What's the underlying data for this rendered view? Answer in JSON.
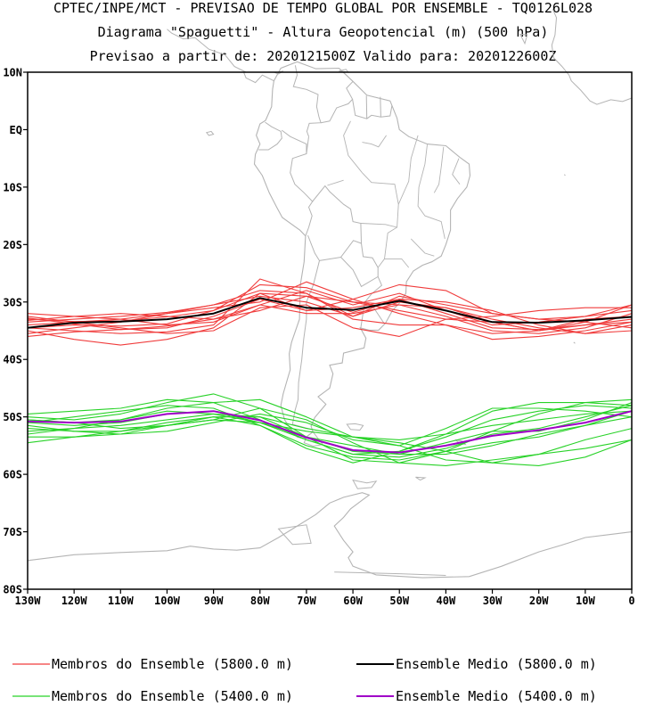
{
  "header": {
    "line1": "CPTEC/INPE/MCT - PREVISAO DE TEMPO GLOBAL POR ENSEMBLE - TQ0126L028",
    "line2": "Diagrama \"Spaguetti\" - Altura Geopotencial (m) (500 hPa)",
    "line3": "Previsao a partir de: 2020121500Z  Valido para: 2020122600Z"
  },
  "chart_data": {
    "type": "line",
    "x_label_units": "longitude (negative = West)",
    "y_label_units": "latitude (negative = South)",
    "xlim": [
      -130,
      0
    ],
    "ylim": [
      -80,
      10
    ],
    "x_ticks": [
      {
        "value": -130,
        "label": "130W"
      },
      {
        "value": -120,
        "label": "120W"
      },
      {
        "value": -110,
        "label": "110W"
      },
      {
        "value": -100,
        "label": "100W"
      },
      {
        "value": -90,
        "label": "90W"
      },
      {
        "value": -80,
        "label": "80W"
      },
      {
        "value": -70,
        "label": "70W"
      },
      {
        "value": -60,
        "label": "60W"
      },
      {
        "value": -50,
        "label": "50W"
      },
      {
        "value": -40,
        "label": "40W"
      },
      {
        "value": -30,
        "label": "30W"
      },
      {
        "value": -20,
        "label": "20W"
      },
      {
        "value": -10,
        "label": "10W"
      },
      {
        "value": 0,
        "label": "0"
      }
    ],
    "y_ticks": [
      {
        "value": 10,
        "label": "10N"
      },
      {
        "value": 0,
        "label": "EQ"
      },
      {
        "value": -10,
        "label": "10S"
      },
      {
        "value": -20,
        "label": "20S"
      },
      {
        "value": -30,
        "label": "30S"
      },
      {
        "value": -40,
        "label": "40S"
      },
      {
        "value": -50,
        "label": "50S"
      },
      {
        "value": -60,
        "label": "60S"
      },
      {
        "value": -70,
        "label": "70S"
      },
      {
        "value": -80,
        "label": "80S"
      }
    ],
    "x": [
      -130,
      -120,
      -110,
      -100,
      -90,
      -80,
      -70,
      -60,
      -50,
      -40,
      -30,
      -20,
      -10,
      0
    ],
    "series": [
      {
        "name": "Membros do Ensemble (5800.0 m)",
        "group": "members_5800",
        "color": "#f03c3c",
        "members": [
          [
            -33.0,
            -33.4,
            -33.3,
            -32.6,
            -31.5,
            -28.5,
            -29.0,
            -31.8,
            -29.5,
            -32.0,
            -34.5,
            -34.8,
            -34.0,
            -33.5
          ],
          [
            -34.5,
            -34.0,
            -34.2,
            -33.8,
            -31.5,
            -27.0,
            -27.5,
            -30.0,
            -30.5,
            -32.5,
            -35.0,
            -35.5,
            -34.5,
            -32.0
          ],
          [
            -36.0,
            -35.2,
            -34.8,
            -34.2,
            -33.0,
            -30.5,
            -28.0,
            -30.5,
            -28.5,
            -31.5,
            -34.0,
            -33.5,
            -32.5,
            -31.5
          ],
          [
            -33.5,
            -33.0,
            -32.5,
            -31.8,
            -30.5,
            -29.0,
            -30.0,
            -32.5,
            -30.0,
            -31.0,
            -33.0,
            -34.5,
            -35.5,
            -34.0
          ],
          [
            -32.5,
            -33.5,
            -34.5,
            -35.5,
            -35.0,
            -31.0,
            -30.5,
            -34.5,
            -36.0,
            -33.0,
            -33.5,
            -35.0,
            -33.5,
            -30.5
          ],
          [
            -34.0,
            -33.5,
            -33.0,
            -32.0,
            -31.0,
            -30.0,
            -26.5,
            -29.5,
            -27.0,
            -28.0,
            -32.0,
            -33.0,
            -33.5,
            -34.5
          ],
          [
            -35.0,
            -36.5,
            -37.5,
            -36.5,
            -34.5,
            -28.5,
            -31.5,
            -31.0,
            -29.5,
            -30.0,
            -31.5,
            -34.0,
            -35.5,
            -35.0
          ],
          [
            -33.2,
            -32.5,
            -32.0,
            -32.5,
            -33.0,
            -31.5,
            -29.0,
            -30.0,
            -31.5,
            -33.0,
            -32.5,
            -31.5,
            -31.0,
            -31.0
          ],
          [
            -34.5,
            -35.0,
            -35.5,
            -35.2,
            -34.0,
            -26.0,
            -28.5,
            -33.0,
            -34.0,
            -34.0,
            -35.5,
            -35.0,
            -33.0,
            -32.5
          ],
          [
            -32.8,
            -33.8,
            -34.8,
            -34.5,
            -32.5,
            -29.5,
            -31.5,
            -29.5,
            -32.0,
            -34.0,
            -36.5,
            -36.0,
            -35.0,
            -33.5
          ],
          [
            -35.5,
            -34.5,
            -33.5,
            -32.0,
            -30.5,
            -28.0,
            -28.5,
            -32.5,
            -29.0,
            -30.5,
            -32.0,
            -33.0,
            -32.5,
            -30.5
          ],
          [
            -32.0,
            -32.5,
            -33.0,
            -34.0,
            -33.5,
            -30.5,
            -32.0,
            -32.0,
            -30.5,
            -31.0,
            -33.5,
            -35.0,
            -34.0,
            -33.0
          ]
        ]
      },
      {
        "name": "Ensemble Medio (5800.0 m)",
        "group": "mean_5800",
        "color": "#000000",
        "values": [
          -34.5,
          -33.6,
          -33.4,
          -33.0,
          -32.0,
          -29.3,
          -31.0,
          -31.4,
          -29.8,
          -31.5,
          -33.5,
          -33.6,
          -33.2,
          -32.6
        ]
      },
      {
        "name": "Membros do Ensemble (5400.0 m)",
        "group": "members_5400",
        "color": "#28d228",
        "members": [
          [
            -51.0,
            -51.5,
            -51.0,
            -49.5,
            -49.0,
            -51.0,
            -54.0,
            -56.5,
            -57.0,
            -55.5,
            -53.0,
            -52.0,
            -50.0,
            -48.0
          ],
          [
            -52.5,
            -52.0,
            -51.5,
            -50.5,
            -49.5,
            -50.0,
            -53.5,
            -56.0,
            -56.5,
            -54.5,
            -52.5,
            -52.5,
            -50.5,
            -47.5
          ],
          [
            -50.0,
            -50.5,
            -49.5,
            -47.5,
            -46.0,
            -48.5,
            -53.5,
            -57.5,
            -58.0,
            -56.0,
            -54.5,
            -53.5,
            -51.5,
            -49.0
          ],
          [
            -51.5,
            -52.5,
            -53.0,
            -52.5,
            -51.0,
            -49.5,
            -51.0,
            -54.0,
            -55.0,
            -52.0,
            -48.5,
            -48.5,
            -49.0,
            -50.0
          ],
          [
            -54.5,
            -53.5,
            -52.5,
            -51.0,
            -50.0,
            -51.5,
            -55.0,
            -57.0,
            -57.5,
            -56.0,
            -52.5,
            -49.5,
            -47.5,
            -47.0
          ],
          [
            -50.5,
            -51.0,
            -50.5,
            -48.5,
            -47.5,
            -47.0,
            -50.0,
            -53.5,
            -54.5,
            -56.0,
            -58.0,
            -58.5,
            -57.0,
            -54.0
          ],
          [
            -51.0,
            -50.0,
            -49.0,
            -48.0,
            -48.5,
            -51.5,
            -55.5,
            -58.0,
            -56.0,
            -53.5,
            -50.5,
            -49.0,
            -48.0,
            -48.5
          ],
          [
            -53.0,
            -52.0,
            -50.5,
            -49.0,
            -49.5,
            -51.0,
            -53.5,
            -55.0,
            -56.5,
            -56.5,
            -55.0,
            -53.0,
            -51.5,
            -50.0
          ],
          [
            -49.5,
            -49.0,
            -48.5,
            -47.0,
            -47.5,
            -50.5,
            -54.0,
            -56.5,
            -56.0,
            -53.0,
            -49.0,
            -47.5,
            -47.5,
            -48.0
          ],
          [
            -52.0,
            -52.5,
            -52.5,
            -51.5,
            -50.5,
            -51.0,
            -52.5,
            -53.5,
            -55.0,
            -57.5,
            -58.0,
            -56.5,
            -54.0,
            -52.0
          ],
          [
            -50.5,
            -51.0,
            -52.0,
            -51.5,
            -50.0,
            -50.0,
            -52.0,
            -53.5,
            -54.0,
            -53.0,
            -51.5,
            -50.5,
            -49.5,
            -49.0
          ],
          [
            -53.5,
            -53.5,
            -53.0,
            -51.5,
            -50.5,
            -48.5,
            -50.5,
            -54.5,
            -58.0,
            -58.5,
            -57.5,
            -56.5,
            -55.5,
            -54.0
          ]
        ]
      },
      {
        "name": "Ensemble Medio (5400.0 m)",
        "group": "mean_5400",
        "color": "#a000c8",
        "values": [
          -50.8,
          -51.0,
          -50.8,
          -49.5,
          -49.0,
          -50.6,
          -53.6,
          -55.8,
          -56.2,
          -55.0,
          -53.3,
          -52.3,
          -51.0,
          -49.0
        ]
      }
    ]
  },
  "legend": {
    "items": [
      {
        "label": "Membros do Ensemble (5800.0 m)",
        "color": "#f03c3c"
      },
      {
        "label": "Ensemble Medio (5800.0 m)",
        "color": "#000000"
      },
      {
        "label": "Membros do Ensemble (5400.0 m)",
        "color": "#28d228"
      },
      {
        "label": "Ensemble Medio (5400.0 m)",
        "color": "#a000c8"
      }
    ]
  },
  "colors": {
    "coastline": "#b4b4b4",
    "member_5800": "#f03c3c",
    "mean_5800": "#000000",
    "member_5400": "#28d228",
    "mean_5400": "#a000c8"
  }
}
